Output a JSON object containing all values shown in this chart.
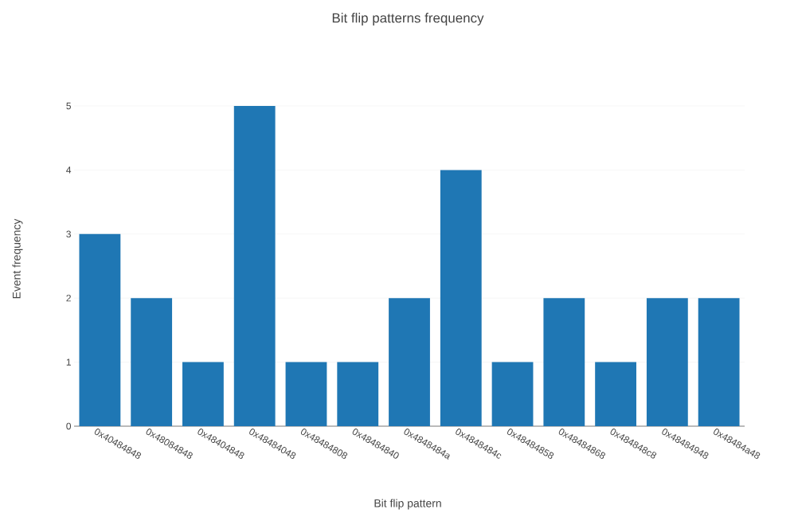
{
  "chart_data": {
    "type": "bar",
    "title": "Bit flip patterns frequency",
    "xlabel": "Bit flip pattern",
    "ylabel": "Event frequency",
    "categories": [
      "0x40484848",
      "0x48084848",
      "0x48404848",
      "0x48484048",
      "0x48484808",
      "0x48484840",
      "0x4848484a",
      "0x4848484c",
      "0x48484858",
      "0x48484868",
      "0x484848c8",
      "0x48484948",
      "0x48484a48"
    ],
    "values": [
      3,
      2,
      1,
      5,
      1,
      1,
      2,
      4,
      1,
      2,
      1,
      2,
      2
    ],
    "color": "#1f77b4",
    "ylim": [
      0,
      5
    ],
    "yticks": [
      0,
      1,
      2,
      3,
      4,
      5
    ],
    "grid": "y"
  }
}
